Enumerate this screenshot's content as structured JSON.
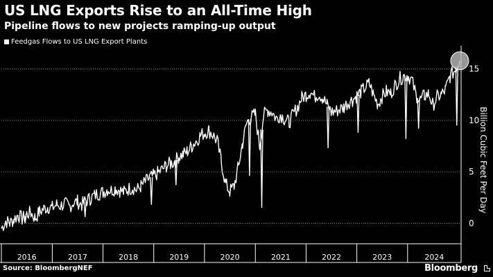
{
  "chart_data": {
    "type": "line",
    "title": "US LNG Exports Rise to an All-Time High",
    "subtitle": "Pipeline flows to new projects ramping-up output",
    "ylabel": "Billion Cubic Feet Per Day",
    "xlabel": "",
    "ylim": [
      -2,
      17
    ],
    "yticks": [
      0,
      5,
      10,
      15
    ],
    "xlim": [
      "2016-01-01",
      "2025-01-20"
    ],
    "xtick_labels": [
      "2016",
      "2017",
      "2018",
      "2019",
      "2020",
      "2021",
      "2022",
      "2023",
      "2024"
    ],
    "legend": "top-left",
    "grid": true,
    "highlight": {
      "x": "2025-01-10",
      "y": 15.8
    },
    "series": [
      {
        "name": "Feedgas Flows to US LNG Export Plants",
        "points": [
          [
            "2016-01-01",
            -0.5
          ],
          [
            "2016-02-01",
            0.2
          ],
          [
            "2016-03-01",
            0.0
          ],
          [
            "2016-04-01",
            0.4
          ],
          [
            "2016-05-01",
            0.8
          ],
          [
            "2016-06-01",
            0.4
          ],
          [
            "2016-07-01",
            0.9
          ],
          [
            "2016-08-01",
            1.0
          ],
          [
            "2016-09-01",
            0.5
          ],
          [
            "2016-10-01",
            1.1
          ],
          [
            "2016-11-01",
            1.4
          ],
          [
            "2016-12-01",
            1.6
          ],
          [
            "2017-01-01",
            1.5
          ],
          [
            "2017-02-01",
            1.8
          ],
          [
            "2017-03-01",
            1.7
          ],
          [
            "2017-04-01",
            1.9
          ],
          [
            "2017-05-01",
            1.6
          ],
          [
            "2017-06-01",
            2.0
          ],
          [
            "2017-07-01",
            2.1
          ],
          [
            "2017-08-01",
            1.8
          ],
          [
            "2017-09-01",
            2.2
          ],
          [
            "2017-10-01",
            2.4
          ],
          [
            "2017-11-01",
            2.7
          ],
          [
            "2017-12-01",
            2.9
          ],
          [
            "2018-01-01",
            3.0
          ],
          [
            "2018-02-01",
            3.3
          ],
          [
            "2018-03-01",
            3.2
          ],
          [
            "2018-04-01",
            3.4
          ],
          [
            "2018-05-01",
            3.2
          ],
          [
            "2018-06-01",
            3.0
          ],
          [
            "2018-07-01",
            3.3
          ],
          [
            "2018-08-01",
            3.5
          ],
          [
            "2018-09-01",
            3.2
          ],
          [
            "2018-10-01",
            3.6
          ],
          [
            "2018-11-01",
            4.0
          ],
          [
            "2018-12-01",
            4.4
          ],
          [
            "2019-01-01",
            4.6
          ],
          [
            "2019-02-01",
            4.9
          ],
          [
            "2019-03-01",
            5.2
          ],
          [
            "2019-04-01",
            5.6
          ],
          [
            "2019-05-01",
            5.8
          ],
          [
            "2019-06-01",
            6.0
          ],
          [
            "2019-07-01",
            6.5
          ],
          [
            "2019-08-01",
            6.7
          ],
          [
            "2019-09-01",
            7.0
          ],
          [
            "2019-10-01",
            7.5
          ],
          [
            "2019-11-01",
            8.0
          ],
          [
            "2019-12-01",
            8.5
          ],
          [
            "2020-01-01",
            8.8
          ],
          [
            "2020-02-01",
            9.0
          ],
          [
            "2020-03-01",
            8.6
          ],
          [
            "2020-04-01",
            8.0
          ],
          [
            "2020-05-01",
            6.0
          ],
          [
            "2020-06-01",
            3.8
          ],
          [
            "2020-07-01",
            3.1
          ],
          [
            "2020-08-01",
            3.6
          ],
          [
            "2020-09-01",
            5.5
          ],
          [
            "2020-10-01",
            7.8
          ],
          [
            "2020-11-01",
            9.8
          ],
          [
            "2020-12-01",
            10.3
          ],
          [
            "2021-01-01",
            10.6
          ],
          [
            "2021-02-01",
            7.5
          ],
          [
            "2021-03-01",
            10.5
          ],
          [
            "2021-04-01",
            11.0
          ],
          [
            "2021-05-01",
            10.8
          ],
          [
            "2021-06-01",
            10.2
          ],
          [
            "2021-07-01",
            10.6
          ],
          [
            "2021-08-01",
            10.1
          ],
          [
            "2021-09-01",
            9.8
          ],
          [
            "2021-10-01",
            10.6
          ],
          [
            "2021-11-01",
            11.3
          ],
          [
            "2021-12-01",
            12.2
          ],
          [
            "2022-01-01",
            12.5
          ],
          [
            "2022-02-01",
            12.8
          ],
          [
            "2022-03-01",
            12.3
          ],
          [
            "2022-04-01",
            12.6
          ],
          [
            "2022-05-01",
            12.2
          ],
          [
            "2022-06-01",
            11.5
          ],
          [
            "2022-07-01",
            10.8
          ],
          [
            "2022-08-01",
            10.9
          ],
          [
            "2022-09-01",
            11.1
          ],
          [
            "2022-10-01",
            11.3
          ],
          [
            "2022-11-01",
            11.8
          ],
          [
            "2022-12-01",
            12.0
          ],
          [
            "2023-01-01",
            12.4
          ],
          [
            "2023-02-01",
            12.8
          ],
          [
            "2023-03-01",
            13.2
          ],
          [
            "2023-04-01",
            13.6
          ],
          [
            "2023-05-01",
            12.5
          ],
          [
            "2023-06-01",
            11.6
          ],
          [
            "2023-07-01",
            12.3
          ],
          [
            "2023-08-01",
            12.8
          ],
          [
            "2023-09-01",
            12.6
          ],
          [
            "2023-10-01",
            13.4
          ],
          [
            "2023-11-01",
            14.0
          ],
          [
            "2023-12-01",
            14.3
          ],
          [
            "2024-01-01",
            14.4
          ],
          [
            "2024-02-01",
            13.9
          ],
          [
            "2024-03-01",
            12.5
          ],
          [
            "2024-04-01",
            12.0
          ],
          [
            "2024-05-01",
            12.4
          ],
          [
            "2024-06-01",
            12.6
          ],
          [
            "2024-07-01",
            11.5
          ],
          [
            "2024-08-01",
            12.3
          ],
          [
            "2024-09-01",
            12.5
          ],
          [
            "2024-10-01",
            13.0
          ],
          [
            "2024-11-01",
            14.3
          ],
          [
            "2024-12-01",
            14.8
          ],
          [
            "2025-01-10",
            15.8
          ]
        ],
        "dips": [
          [
            "2016-06-20",
            0.0
          ],
          [
            "2017-08-25",
            0.6
          ],
          [
            "2018-12-15",
            1.8
          ],
          [
            "2019-06-10",
            3.7
          ],
          [
            "2020-11-20",
            4.6
          ],
          [
            "2021-02-16",
            1.5
          ],
          [
            "2022-06-08",
            7.3
          ],
          [
            "2023-01-10",
            8.8
          ],
          [
            "2023-12-20",
            8.2
          ],
          [
            "2024-03-20",
            9.2
          ],
          [
            "2024-12-20",
            9.5
          ]
        ]
      }
    ]
  },
  "source": "Source: BloombergNEF",
  "brand": "Bloomberg",
  "colors": {
    "background": "#000000",
    "line": "#ffffff",
    "grid": "#8a8a8a",
    "highlight": "#bdbdbd"
  }
}
